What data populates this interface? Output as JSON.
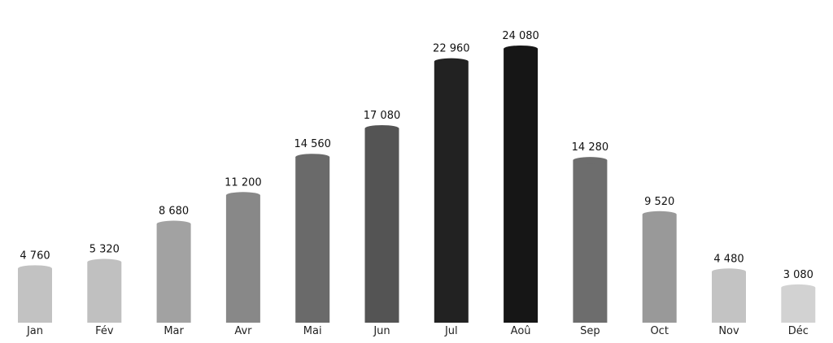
{
  "chart_data": {
    "type": "bar",
    "title": "",
    "xlabel": "",
    "ylabel": "",
    "categories": [
      "Jan",
      "Fév",
      "Mar",
      "Avr",
      "Mai",
      "Jun",
      "Jul",
      "Aoû",
      "Sep",
      "Oct",
      "Nov",
      "Déc"
    ],
    "values": [
      4760,
      5320,
      8680,
      11200,
      14560,
      17080,
      22960,
      24080,
      14280,
      9520,
      4480,
      3080
    ],
    "value_labels": [
      "4 760",
      "5 320",
      "8 680",
      "11 200",
      "14 560",
      "17 080",
      "22 960",
      "24 080",
      "14 280",
      "9 520",
      "4 480",
      "3 080"
    ],
    "bar_colors": [
      "#c2c2c2",
      "#c0c0c0",
      "#a2a2a2",
      "#888888",
      "#6a6a6a",
      "#545454",
      "#222222",
      "#161616",
      "#6d6d6d",
      "#999999",
      "#c3c3c3",
      "#d2d2d2"
    ],
    "ylim": [
      0,
      24080
    ],
    "grid": false,
    "legend": "none"
  }
}
